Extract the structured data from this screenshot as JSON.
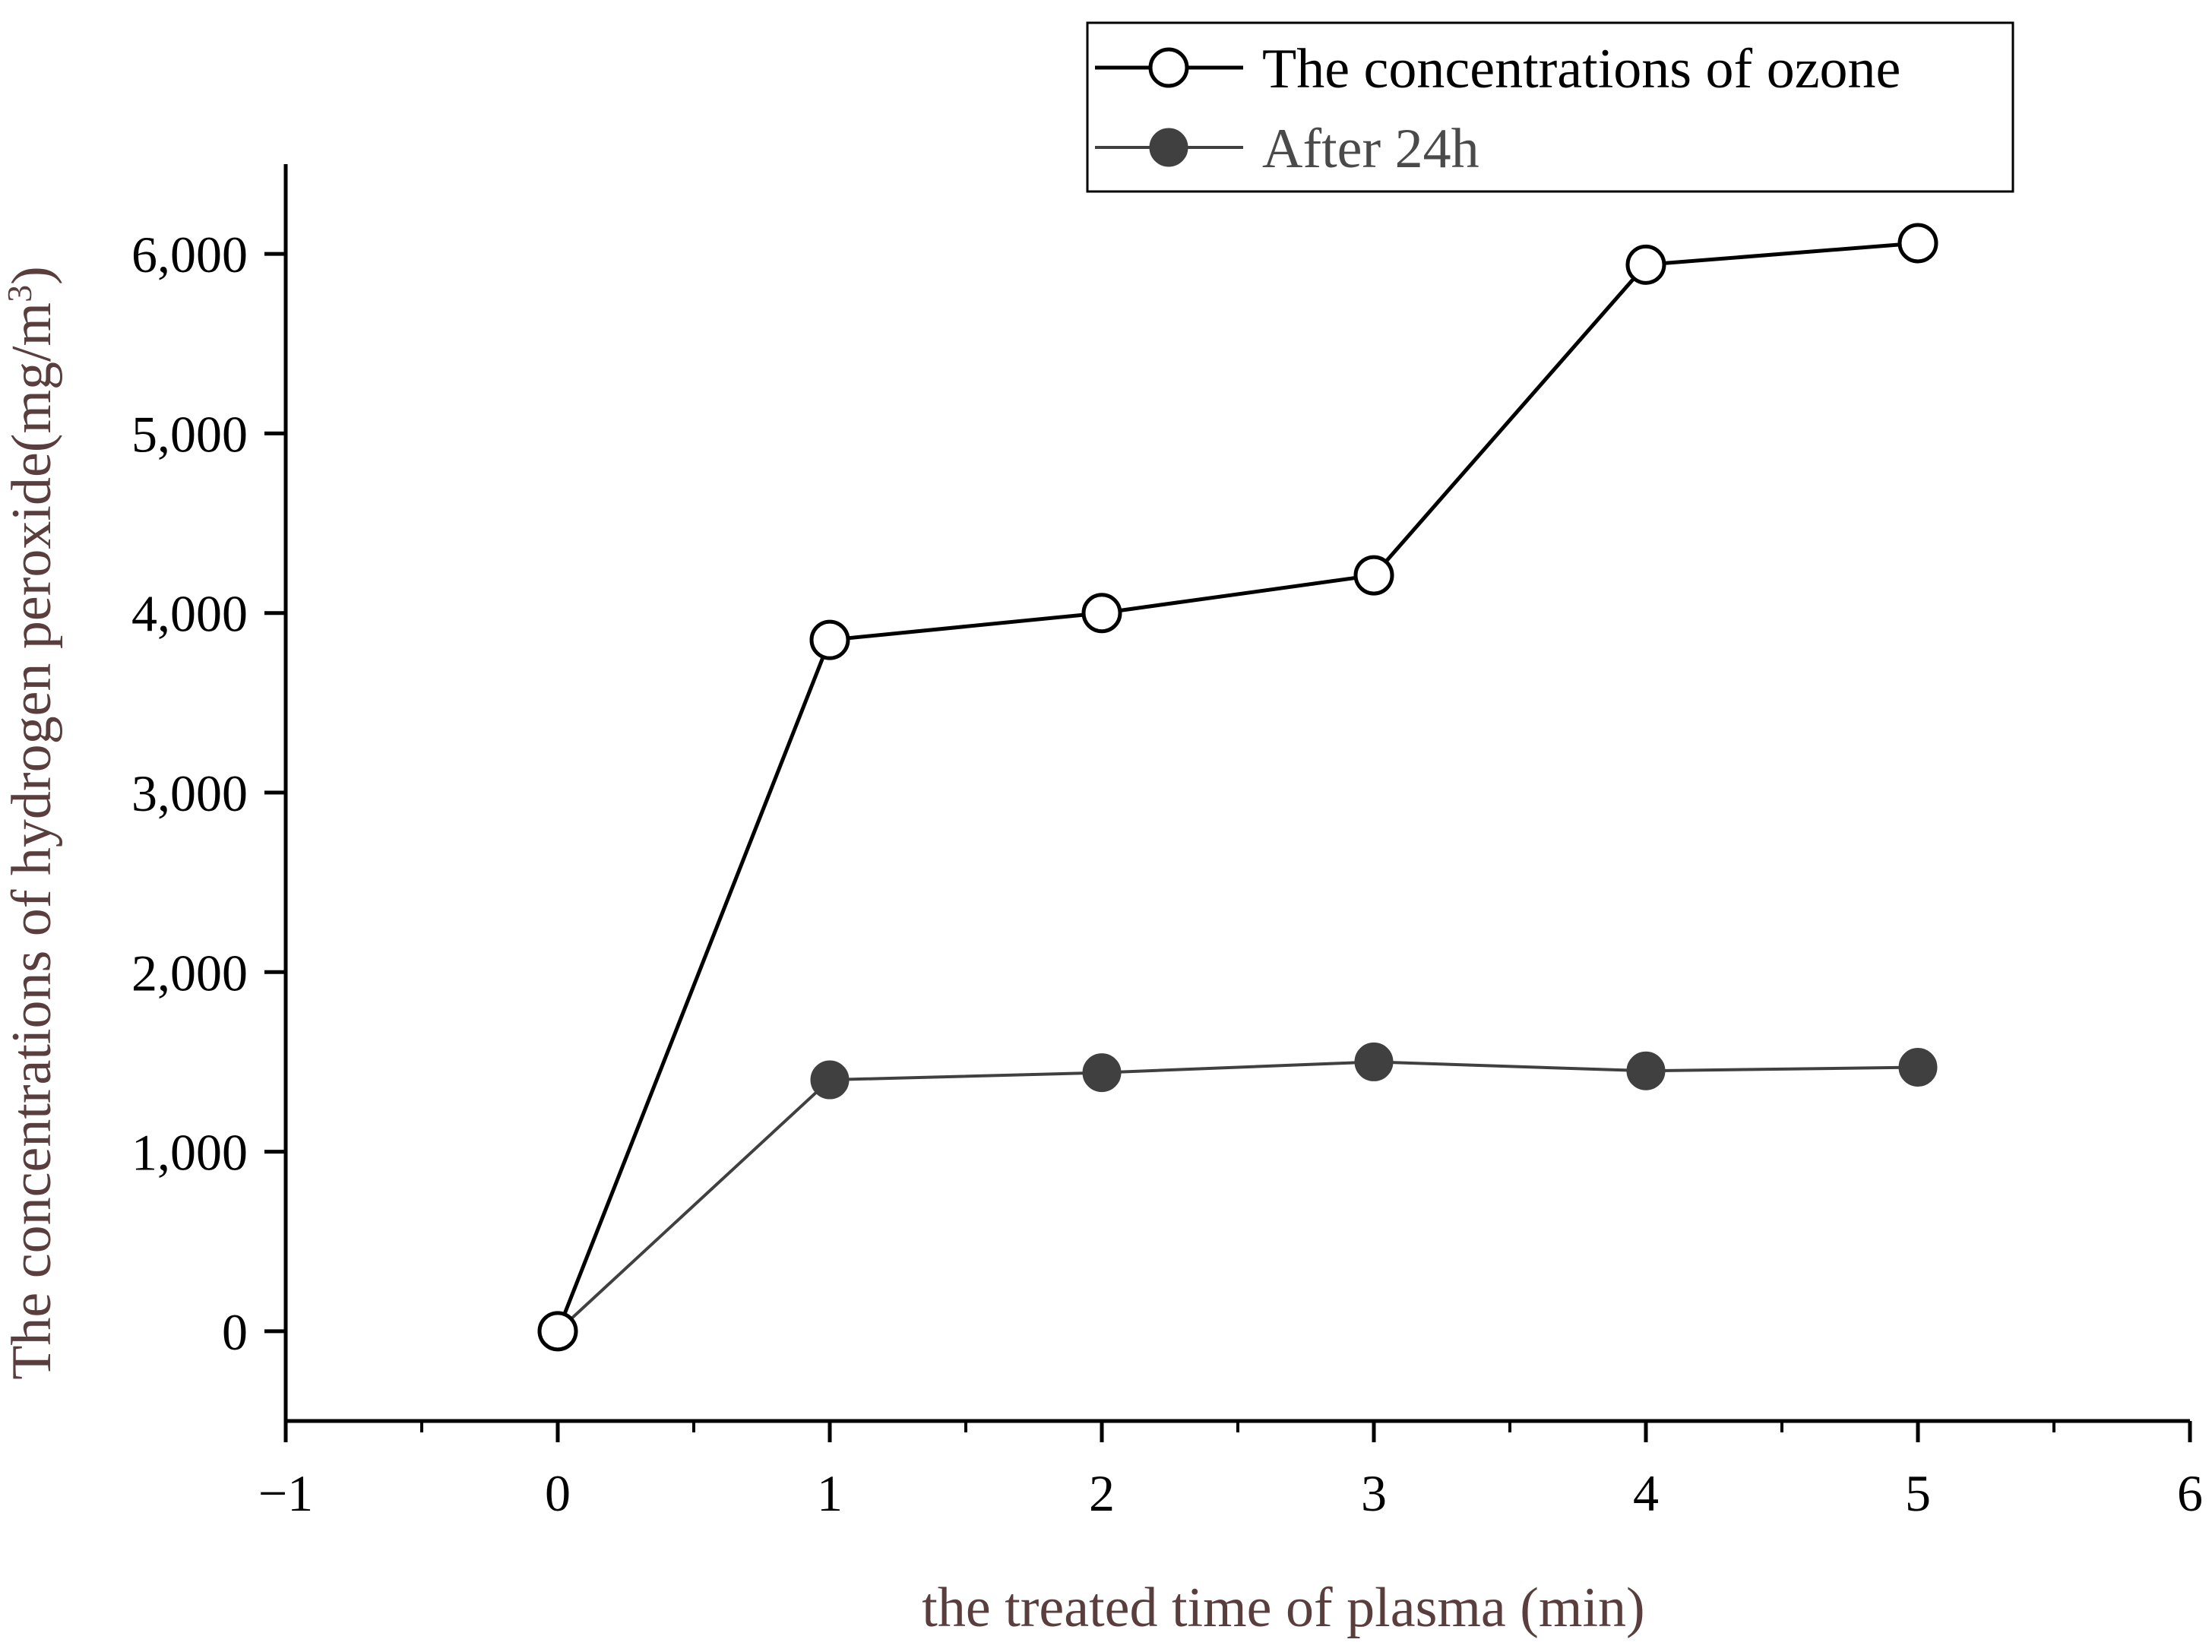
{
  "chart_data": {
    "type": "line",
    "title": "",
    "xlabel": "the treated time of plasma (min)",
    "ylabel_main": "The concentrations of hydrogen peroxide(mg/m",
    "ylabel_sup": "3",
    "ylabel_end": ")",
    "xlim": [
      -1,
      6
    ],
    "ylim": [
      -500,
      6500
    ],
    "xticks": [
      -1,
      0,
      1,
      2,
      3,
      4,
      5,
      6
    ],
    "xtick_labels": [
      "−1",
      "0",
      "1",
      "2",
      "3",
      "4",
      "5",
      "6"
    ],
    "yticks": [
      0,
      1000,
      2000,
      3000,
      4000,
      5000,
      6000
    ],
    "ytick_labels": [
      "0",
      "1,000",
      "2,000",
      "3,000",
      "4,000",
      "5,000",
      "6,000"
    ],
    "legend_position": "top-right",
    "x": [
      0,
      1,
      2,
      3,
      4,
      5
    ],
    "series": [
      {
        "name": "The concentrations of ozone",
        "values": [
          0,
          3850,
          4000,
          4210,
          5940,
          6060
        ],
        "color": "#000000",
        "marker": "open-circle"
      },
      {
        "name": "After 24h",
        "values": [
          0,
          1400,
          1440,
          1500,
          1450,
          1470
        ],
        "color": "#404040",
        "marker": "filled-circle"
      }
    ]
  }
}
